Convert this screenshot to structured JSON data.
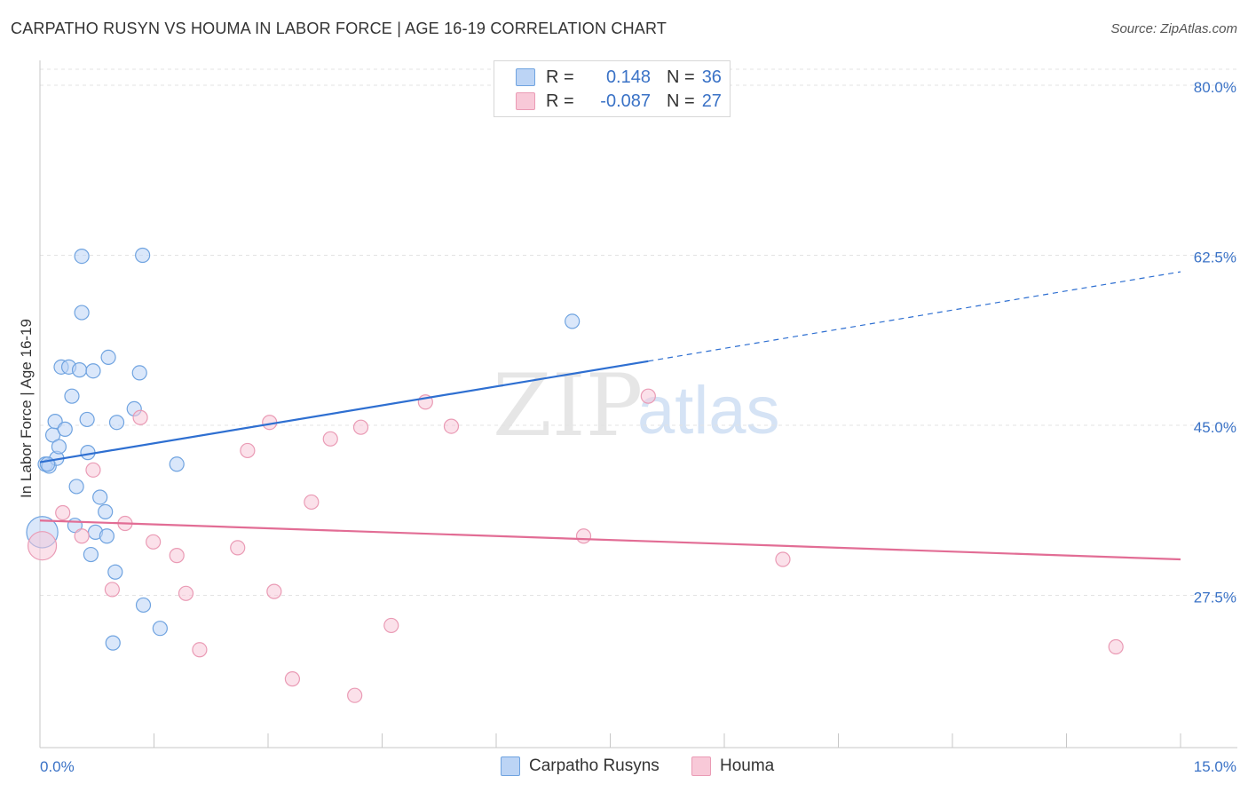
{
  "chart_data": {
    "type": "scatter",
    "title": "CARPATHO RUSYN VS HOUMA IN LABOR FORCE | AGE 16-19 CORRELATION CHART",
    "source": "Source: ZipAtlas.com",
    "xlabel": "",
    "ylabel": "In Labor Force | Age 16-19",
    "xlim": [
      0,
      15
    ],
    "ylim": [
      10,
      84
    ],
    "x_tick_labels": [
      "0.0%",
      "15.0%"
    ],
    "y_ticks": [
      27.5,
      45.0,
      62.5,
      80.0
    ],
    "y_tick_labels": [
      "27.5%",
      "45.0%",
      "62.5%",
      "80.0%"
    ],
    "watermark": {
      "zip": "ZIP",
      "atlas": "atlas"
    },
    "colors": {
      "blue": "#6fa3e0",
      "blue_fill": "#bcd4f5",
      "blue_line": "#2e6fd1",
      "pink": "#ea9bb5",
      "pink_fill": "#f8c9d8",
      "pink_line": "#e26d95",
      "axis_text": "#3a72c6"
    },
    "legend": [
      {
        "r_label": "R =",
        "r_value": "0.148",
        "n_label": "N =",
        "n_value": "36"
      },
      {
        "r_label": "R =",
        "r_value": "-0.087",
        "n_label": "N =",
        "n_value": "27"
      }
    ],
    "series": [
      {
        "name": "Carpatho Rusyns",
        "trend": {
          "x0": 0.0,
          "y0": 41.2,
          "x1": 8.0,
          "y1": 51.6,
          "dash_to_x": 15.0,
          "dash_to_y": 60.8
        },
        "points": [
          {
            "x": 0.03,
            "y": 34.0,
            "s": 2.2
          },
          {
            "x": 0.07,
            "y": 41.0,
            "s": 1.0
          },
          {
            "x": 0.12,
            "y": 40.8,
            "s": 1.0
          },
          {
            "x": 0.17,
            "y": 44.0,
            "s": 1.0
          },
          {
            "x": 0.2,
            "y": 45.4,
            "s": 1.0
          },
          {
            "x": 0.22,
            "y": 41.6,
            "s": 1.0
          },
          {
            "x": 0.25,
            "y": 42.8,
            "s": 1.0
          },
          {
            "x": 0.28,
            "y": 51.0,
            "s": 1.0
          },
          {
            "x": 0.33,
            "y": 44.6,
            "s": 1.0
          },
          {
            "x": 0.38,
            "y": 51.0,
            "s": 1.0
          },
          {
            "x": 0.42,
            "y": 48.0,
            "s": 1.0
          },
          {
            "x": 0.46,
            "y": 34.7,
            "s": 1.0
          },
          {
            "x": 0.48,
            "y": 38.7,
            "s": 1.0
          },
          {
            "x": 0.52,
            "y": 50.7,
            "s": 1.0
          },
          {
            "x": 0.55,
            "y": 62.4,
            "s": 1.0
          },
          {
            "x": 0.55,
            "y": 56.6,
            "s": 1.0
          },
          {
            "x": 0.62,
            "y": 45.6,
            "s": 1.0
          },
          {
            "x": 0.63,
            "y": 42.2,
            "s": 1.0
          },
          {
            "x": 0.67,
            "y": 31.7,
            "s": 1.0
          },
          {
            "x": 0.7,
            "y": 50.6,
            "s": 1.0
          },
          {
            "x": 0.73,
            "y": 34.0,
            "s": 1.0
          },
          {
            "x": 0.79,
            "y": 37.6,
            "s": 1.0
          },
          {
            "x": 0.86,
            "y": 36.1,
            "s": 1.0
          },
          {
            "x": 0.88,
            "y": 33.6,
            "s": 1.0
          },
          {
            "x": 0.9,
            "y": 52.0,
            "s": 1.0
          },
          {
            "x": 0.96,
            "y": 22.6,
            "s": 1.0
          },
          {
            "x": 0.99,
            "y": 29.9,
            "s": 1.0
          },
          {
            "x": 1.01,
            "y": 45.3,
            "s": 1.0
          },
          {
            "x": 1.24,
            "y": 46.7,
            "s": 1.0
          },
          {
            "x": 1.31,
            "y": 50.4,
            "s": 1.0
          },
          {
            "x": 1.35,
            "y": 62.5,
            "s": 1.0
          },
          {
            "x": 1.36,
            "y": 26.5,
            "s": 1.0
          },
          {
            "x": 1.58,
            "y": 24.1,
            "s": 1.0
          },
          {
            "x": 1.8,
            "y": 41.0,
            "s": 1.0
          },
          {
            "x": 7.0,
            "y": 55.7,
            "s": 1.0
          },
          {
            "x": 0.1,
            "y": 41.0,
            "s": 1.0
          }
        ]
      },
      {
        "name": "Houma",
        "trend": {
          "x0": 0.0,
          "y0": 35.2,
          "x1": 15.0,
          "y1": 31.2
        },
        "points": [
          {
            "x": 0.03,
            "y": 32.6,
            "s": 2.0
          },
          {
            "x": 0.3,
            "y": 36.0,
            "s": 1.0
          },
          {
            "x": 0.55,
            "y": 33.6,
            "s": 1.0
          },
          {
            "x": 0.7,
            "y": 40.4,
            "s": 1.0
          },
          {
            "x": 0.95,
            "y": 28.1,
            "s": 1.0
          },
          {
            "x": 1.12,
            "y": 34.9,
            "s": 1.0
          },
          {
            "x": 1.32,
            "y": 45.8,
            "s": 1.0
          },
          {
            "x": 1.49,
            "y": 33.0,
            "s": 1.0
          },
          {
            "x": 1.8,
            "y": 31.6,
            "s": 1.0
          },
          {
            "x": 1.92,
            "y": 27.7,
            "s": 1.0
          },
          {
            "x": 2.1,
            "y": 21.9,
            "s": 1.0
          },
          {
            "x": 2.6,
            "y": 32.4,
            "s": 1.0
          },
          {
            "x": 2.73,
            "y": 42.4,
            "s": 1.0
          },
          {
            "x": 3.02,
            "y": 45.3,
            "s": 1.0
          },
          {
            "x": 3.08,
            "y": 27.9,
            "s": 1.0
          },
          {
            "x": 3.32,
            "y": 18.9,
            "s": 1.0
          },
          {
            "x": 3.57,
            "y": 37.1,
            "s": 1.0
          },
          {
            "x": 3.82,
            "y": 43.6,
            "s": 1.0
          },
          {
            "x": 4.14,
            "y": 17.2,
            "s": 1.0
          },
          {
            "x": 4.22,
            "y": 44.8,
            "s": 1.0
          },
          {
            "x": 4.62,
            "y": 24.4,
            "s": 1.0
          },
          {
            "x": 5.07,
            "y": 47.4,
            "s": 1.0
          },
          {
            "x": 5.41,
            "y": 44.9,
            "s": 1.0
          },
          {
            "x": 7.15,
            "y": 33.6,
            "s": 1.0
          },
          {
            "x": 8.0,
            "y": 48.0,
            "s": 1.0
          },
          {
            "x": 9.77,
            "y": 31.2,
            "s": 1.0
          },
          {
            "x": 14.15,
            "y": 22.2,
            "s": 1.0
          }
        ]
      }
    ]
  },
  "legend_bottom": [
    "Carpatho Rusyns",
    "Houma"
  ]
}
